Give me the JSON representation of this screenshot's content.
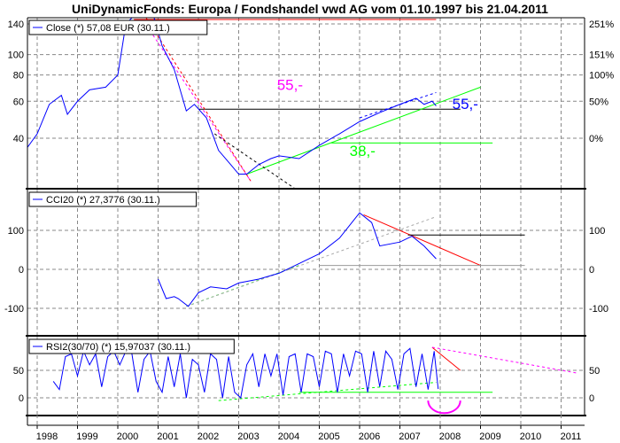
{
  "chart_data": [
    {
      "type": "line",
      "title": "UniDynamicFonds: Europa / Fondshandel vwd AG vom 01.10.1997 bis 21.04.2011",
      "legend": "Close (*) 57,08 EUR (30.11.)",
      "legend_placement": "top-left",
      "scale": "log",
      "grid": true,
      "yticks": [
        40,
        60,
        80,
        100,
        140
      ],
      "yticks_right": [
        "0%",
        "50%",
        "100%",
        "151%",
        "251%"
      ],
      "series_color": "#0000ff",
      "x": [
        1997.75,
        1998.0,
        1998.3,
        1998.6,
        1998.75,
        1999.0,
        1999.3,
        1999.7,
        2000.0,
        2000.2,
        2000.5,
        2000.9,
        2001.1,
        2001.4,
        2001.7,
        2001.9,
        2002.2,
        2002.5,
        2002.8,
        2003.0,
        2003.2,
        2003.5,
        2003.8,
        2004.0,
        2004.5,
        2005.0,
        2005.5,
        2006.0,
        2006.5,
        2007.0,
        2007.4,
        2007.6,
        2007.8,
        2007.9
      ],
      "values": [
        36,
        42,
        58,
        64,
        52,
        60,
        68,
        70,
        80,
        140,
        160,
        150,
        110,
        85,
        54,
        58,
        50,
        35,
        30,
        27,
        27,
        30,
        32,
        33,
        32,
        37,
        42,
        48,
        53,
        58,
        62,
        58,
        60,
        57
      ],
      "lines": [
        {
          "color": "#ff0000",
          "dash": false,
          "from": [
            2000.4,
            147
          ],
          "to": [
            2007.9,
            147
          ]
        },
        {
          "color": "#000000",
          "dash": false,
          "from": [
            2002.0,
            55
          ],
          "to": [
            2008.5,
            55
          ]
        },
        {
          "color": "#00ff00",
          "dash": false,
          "from": [
            2003.2,
            27
          ],
          "to": [
            2009.0,
            70
          ]
        },
        {
          "color": "#00ff00",
          "dash": false,
          "from": [
            2005.3,
            38
          ],
          "to": [
            2009.3,
            38
          ]
        },
        {
          "color": "#ff0000",
          "dash": true,
          "from": [
            2000.7,
            150
          ],
          "to": [
            2003.3,
            25
          ]
        },
        {
          "color": "#ff00ff",
          "dash": true,
          "from": [
            2000.8,
            130
          ],
          "to": [
            2003.3,
            25
          ]
        },
        {
          "color": "#000000",
          "dash": true,
          "from": [
            2002.4,
            42
          ],
          "to": [
            2004.4,
            23
          ]
        },
        {
          "color": "#0000ff",
          "dash": true,
          "from": [
            2006.0,
            50
          ],
          "to": [
            2007.9,
            66
          ]
        }
      ],
      "annotations": [
        {
          "text": "55,-",
          "color": "#ff00ff",
          "at": [
            2003.95,
            68
          ]
        },
        {
          "text": "55,-",
          "color": "#0000ff",
          "at": [
            2008.3,
            55
          ]
        },
        {
          "text": "38,-",
          "color": "#00ff00",
          "at": [
            2005.75,
            33
          ]
        }
      ]
    },
    {
      "type": "line",
      "legend": "CCI20 (*) 27,3776 (30.11.)",
      "grid": true,
      "yticks": [
        -100,
        0,
        100
      ],
      "ylim": [
        -170,
        190
      ],
      "series_color": "#0000ff",
      "x": [
        2001.0,
        2001.2,
        2001.4,
        2001.5,
        2001.75,
        2002.0,
        2002.3,
        2002.7,
        2003.0,
        2003.5,
        2004.0,
        2004.5,
        2005.0,
        2005.5,
        2006.0,
        2006.3,
        2006.5,
        2007.0,
        2007.3,
        2007.6,
        2007.9
      ],
      "values": [
        -25,
        -75,
        -70,
        -75,
        -95,
        -60,
        -45,
        -50,
        -35,
        -25,
        -10,
        15,
        40,
        80,
        145,
        120,
        60,
        70,
        85,
        60,
        27
      ],
      "lines": [
        {
          "color": "#ff0000",
          "dash": false,
          "from": [
            2006.1,
            140
          ],
          "to": [
            2009.0,
            10
          ]
        },
        {
          "color": "#000000",
          "dash": false,
          "from": [
            2007.2,
            88
          ],
          "to": [
            2010.1,
            88
          ]
        },
        {
          "color": "#999999",
          "dash": false,
          "from": [
            2005.0,
            10
          ],
          "to": [
            2010.1,
            10
          ]
        },
        {
          "color": "#00ff00",
          "dash": true,
          "from": [
            2001.7,
            -95
          ],
          "to": [
            2004.5,
            10
          ]
        },
        {
          "color": "#aaaaaa",
          "dash": true,
          "from": [
            2001.7,
            -95
          ],
          "to": [
            2007.9,
            135
          ]
        }
      ]
    },
    {
      "type": "line",
      "legend": "RSI2(30/70) (*) 15,97037 (30.11.)",
      "grid": true,
      "yticks": [
        0,
        50
      ],
      "ylim": [
        -40,
        100
      ],
      "series_color": "#0000ff",
      "x": [
        1998.4,
        1998.55,
        1998.7,
        1998.85,
        1999.0,
        1999.15,
        1999.3,
        1999.45,
        1999.6,
        1999.75,
        1999.9,
        2000.05,
        2000.2,
        2000.35,
        2000.5,
        2000.65,
        2000.8,
        2000.95,
        2001.1,
        2001.25,
        2001.4,
        2001.55,
        2001.7,
        2001.85,
        2002.0,
        2002.15,
        2002.3,
        2002.45,
        2002.6,
        2002.75,
        2002.9,
        2003.05,
        2003.2,
        2003.35,
        2003.5,
        2003.65,
        2003.8,
        2003.95,
        2004.1,
        2004.25,
        2004.4,
        2004.55,
        2004.7,
        2004.85,
        2005.0,
        2005.15,
        2005.3,
        2005.45,
        2005.6,
        2005.75,
        2005.9,
        2006.05,
        2006.2,
        2006.35,
        2006.5,
        2006.65,
        2006.8,
        2006.95,
        2007.1,
        2007.25,
        2007.4,
        2007.55,
        2007.7,
        2007.85,
        2007.95
      ],
      "values": [
        30,
        15,
        75,
        80,
        40,
        85,
        60,
        80,
        20,
        75,
        85,
        60,
        85,
        80,
        10,
        70,
        85,
        30,
        10,
        75,
        20,
        80,
        0,
        70,
        60,
        10,
        80,
        70,
        0,
        75,
        10,
        0,
        60,
        80,
        20,
        80,
        40,
        80,
        5,
        75,
        80,
        10,
        80,
        75,
        20,
        85,
        80,
        10,
        80,
        40,
        85,
        80,
        10,
        85,
        20,
        85,
        70,
        15,
        80,
        90,
        20,
        80,
        15,
        85,
        16
      ],
      "lines": [
        {
          "color": "#00ff00",
          "dash": false,
          "from": [
            2004.5,
            10
          ],
          "to": [
            2009.3,
            10
          ]
        },
        {
          "color": "#00ff00",
          "dash": true,
          "from": [
            2002.5,
            -5
          ],
          "to": [
            2007.9,
            28
          ]
        },
        {
          "color": "#ff0000",
          "dash": false,
          "from": [
            2007.8,
            92
          ],
          "to": [
            2008.5,
            50
          ]
        },
        {
          "color": "#ff00ff",
          "dash": true,
          "from": [
            2007.8,
            92
          ],
          "to": [
            2011.4,
            45
          ]
        }
      ]
    }
  ],
  "xaxis": {
    "labels": [
      "1998",
      "1999",
      "2000",
      "2001",
      "2002",
      "2003",
      "2004",
      "2005",
      "2006",
      "2007",
      "2008",
      "2009",
      "2010",
      "2011"
    ]
  }
}
